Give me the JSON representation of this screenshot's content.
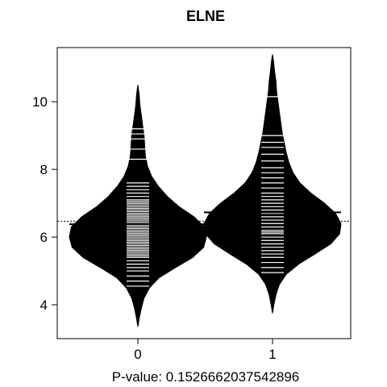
{
  "chart_data": {
    "type": "beanplot",
    "title": "ELNE",
    "xlabel": "P-value: 0.1526662037542896",
    "ylabel": "",
    "categories": [
      "0",
      "1"
    ],
    "ylim": [
      3.0,
      11.6
    ],
    "yticks": [
      4,
      6,
      8,
      10
    ],
    "overall_mean": 6.47,
    "series": [
      {
        "category": "0",
        "mean": 6.38,
        "min": 3.35,
        "max": 10.5,
        "mode": 6.15,
        "density": [
          [
            3.35,
            0.0
          ],
          [
            3.6,
            0.02
          ],
          [
            3.9,
            0.05
          ],
          [
            4.2,
            0.09
          ],
          [
            4.5,
            0.17
          ],
          [
            4.8,
            0.31
          ],
          [
            5.1,
            0.55
          ],
          [
            5.4,
            0.8
          ],
          [
            5.7,
            0.96
          ],
          [
            6.0,
            1.0
          ],
          [
            6.3,
            0.97
          ],
          [
            6.6,
            0.82
          ],
          [
            6.9,
            0.6
          ],
          [
            7.2,
            0.43
          ],
          [
            7.5,
            0.3
          ],
          [
            7.8,
            0.2
          ],
          [
            8.1,
            0.14
          ],
          [
            8.4,
            0.11
          ],
          [
            8.7,
            0.1
          ],
          [
            9.0,
            0.09
          ],
          [
            9.3,
            0.07
          ],
          [
            9.6,
            0.05
          ],
          [
            9.9,
            0.03
          ],
          [
            10.2,
            0.02
          ],
          [
            10.5,
            0.0
          ]
        ],
        "observations": [
          4.55,
          4.7,
          4.85,
          5.0,
          5.1,
          5.2,
          5.3,
          5.4,
          5.45,
          5.5,
          5.55,
          5.6,
          5.65,
          5.7,
          5.75,
          5.8,
          5.85,
          5.9,
          5.95,
          6.0,
          6.05,
          6.1,
          6.15,
          6.2,
          6.25,
          6.3,
          6.35,
          6.4,
          6.45,
          6.5,
          6.55,
          6.6,
          6.65,
          6.7,
          6.75,
          6.8,
          6.85,
          6.9,
          6.95,
          7.0,
          7.05,
          7.1,
          7.2,
          7.3,
          7.4,
          7.5,
          7.6,
          8.3,
          8.6,
          8.9,
          9.05,
          9.2
        ]
      },
      {
        "category": "1",
        "mean": 6.73,
        "min": 3.75,
        "max": 11.4,
        "mode": 6.3,
        "density": [
          [
            3.75,
            0.0
          ],
          [
            4.0,
            0.02
          ],
          [
            4.3,
            0.05
          ],
          [
            4.6,
            0.1
          ],
          [
            4.9,
            0.2
          ],
          [
            5.2,
            0.38
          ],
          [
            5.5,
            0.62
          ],
          [
            5.8,
            0.85
          ],
          [
            6.1,
            0.98
          ],
          [
            6.4,
            1.0
          ],
          [
            6.7,
            0.92
          ],
          [
            7.0,
            0.76
          ],
          [
            7.3,
            0.56
          ],
          [
            7.6,
            0.4
          ],
          [
            7.9,
            0.3
          ],
          [
            8.2,
            0.24
          ],
          [
            8.5,
            0.2
          ],
          [
            8.8,
            0.17
          ],
          [
            9.1,
            0.14
          ],
          [
            9.4,
            0.12
          ],
          [
            9.7,
            0.1
          ],
          [
            10.0,
            0.08
          ],
          [
            10.3,
            0.06
          ],
          [
            10.6,
            0.05
          ],
          [
            10.9,
            0.03
          ],
          [
            11.2,
            0.015
          ],
          [
            11.4,
            0.0
          ]
        ],
        "observations": [
          4.95,
          5.1,
          5.25,
          5.4,
          5.5,
          5.6,
          5.7,
          5.8,
          5.9,
          6.0,
          6.1,
          6.15,
          6.2,
          6.3,
          6.4,
          6.5,
          6.6,
          6.7,
          6.8,
          6.9,
          7.0,
          7.1,
          7.2,
          7.3,
          7.45,
          7.6,
          7.75,
          7.9,
          8.05,
          8.25,
          8.45,
          8.65,
          8.8,
          9.0,
          10.15
        ]
      }
    ],
    "grid": false,
    "legend": "none"
  }
}
